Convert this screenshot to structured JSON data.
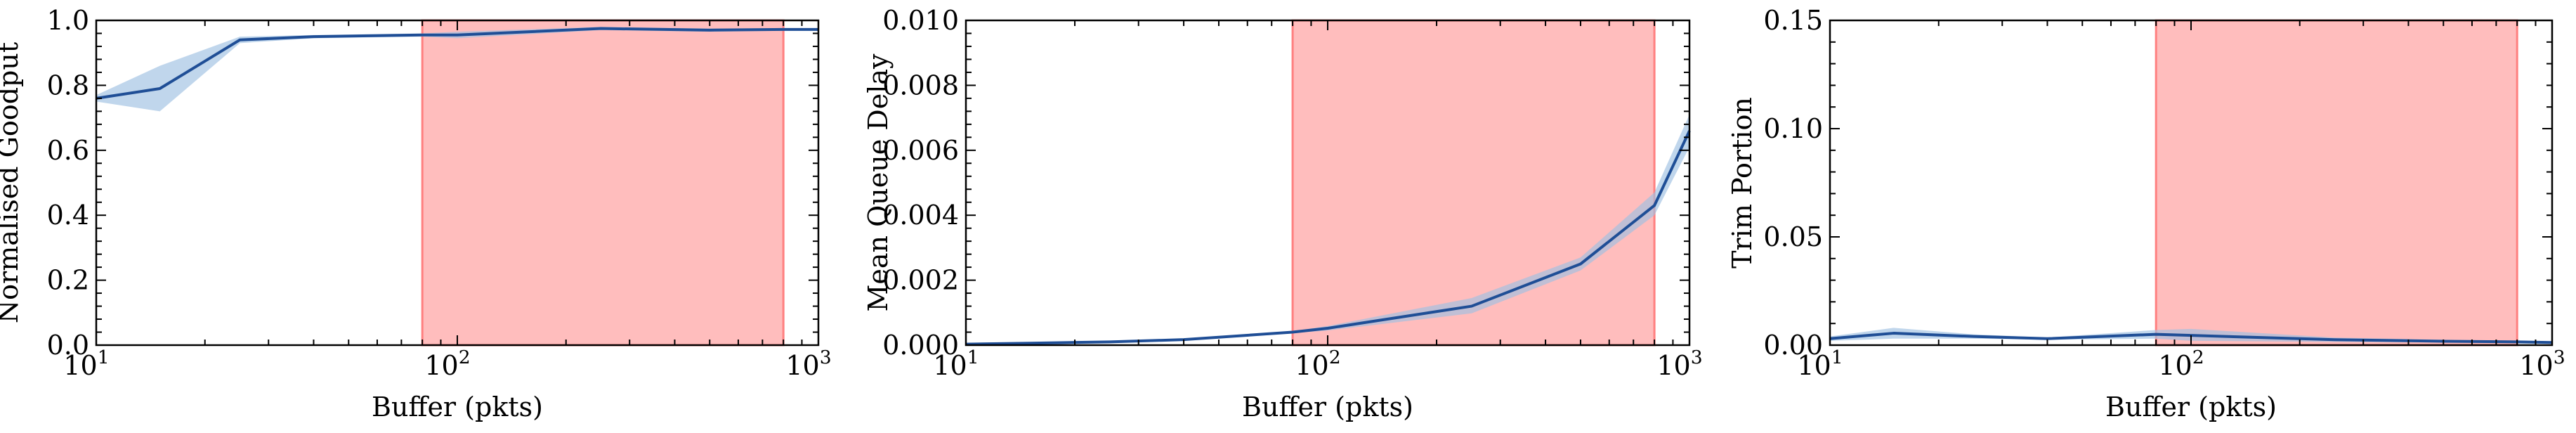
{
  "figure": {
    "colors": {
      "line": "#1f4e96",
      "band": "#9ec0e2",
      "shade": "#ff8080",
      "axis": "#000000"
    }
  },
  "chart_data": [
    {
      "type": "line",
      "title": "",
      "xlabel": "Buffer (pkts)",
      "ylabel": "Normalised Goodput",
      "xscale": "log",
      "xlim": [
        10,
        1000
      ],
      "ylim": [
        0,
        1.0
      ],
      "xticks": [
        10,
        100,
        1000
      ],
      "xtick_labels": [
        {
          "base": "10",
          "exp": "1"
        },
        {
          "base": "10",
          "exp": "2"
        },
        {
          "base": "10",
          "exp": "3"
        }
      ],
      "yticks": [
        0,
        0.2,
        0.4,
        0.6,
        0.8,
        1.0
      ],
      "ytick_labels": [
        "0.0",
        "0.2",
        "0.4",
        "0.6",
        "0.8",
        "1.0"
      ],
      "shaded_region": [
        80,
        800
      ],
      "grid": false,
      "series": [
        {
          "x": [
            10,
            15,
            25,
            40,
            80,
            100,
            250,
            500,
            800,
            1000
          ],
          "values": [
            0.76,
            0.79,
            0.94,
            0.95,
            0.955,
            0.955,
            0.975,
            0.97,
            0.972,
            0.972
          ],
          "lower": [
            0.75,
            0.72,
            0.93,
            0.945,
            0.95,
            0.945,
            0.97,
            0.965,
            0.968,
            0.968
          ],
          "upper": [
            0.77,
            0.86,
            0.95,
            0.955,
            0.96,
            0.965,
            0.98,
            0.975,
            0.976,
            0.976
          ]
        }
      ]
    },
    {
      "type": "line",
      "title": "",
      "xlabel": "Buffer (pkts)",
      "ylabel": "Mean Queue Delay",
      "xscale": "log",
      "xlim": [
        10,
        1000
      ],
      "ylim": [
        0,
        0.01
      ],
      "xticks": [
        10,
        100,
        1000
      ],
      "xtick_labels": [
        {
          "base": "10",
          "exp": "1"
        },
        {
          "base": "10",
          "exp": "2"
        },
        {
          "base": "10",
          "exp": "3"
        }
      ],
      "yticks": [
        0,
        0.002,
        0.004,
        0.006,
        0.008,
        0.01
      ],
      "ytick_labels": [
        "0.000",
        "0.002",
        "0.004",
        "0.006",
        "0.008",
        "0.010"
      ],
      "shaded_region": [
        80,
        800
      ],
      "grid": false,
      "series": [
        {
          "x": [
            10,
            15,
            25,
            40,
            80,
            100,
            250,
            500,
            800,
            1000
          ],
          "values": [
            3e-05,
            6e-05,
            0.0001,
            0.00017,
            0.0004,
            0.00052,
            0.0012,
            0.0025,
            0.0043,
            0.0066
          ],
          "lower": [
            2e-05,
            5e-05,
            9e-05,
            0.00015,
            0.00037,
            0.00045,
            0.00098,
            0.0023,
            0.004,
            0.0061
          ],
          "upper": [
            4e-05,
            7e-05,
            0.00011,
            0.00019,
            0.00043,
            0.00059,
            0.00145,
            0.0027,
            0.0047,
            0.0071
          ]
        }
      ]
    },
    {
      "type": "line",
      "title": "",
      "xlabel": "Buffer (pkts)",
      "ylabel": "Trim Portion",
      "xscale": "log",
      "xlim": [
        10,
        1000
      ],
      "ylim": [
        0,
        0.15
      ],
      "xticks": [
        10,
        100,
        1000
      ],
      "xtick_labels": [
        {
          "base": "10",
          "exp": "1"
        },
        {
          "base": "10",
          "exp": "2"
        },
        {
          "base": "10",
          "exp": "3"
        }
      ],
      "yticks": [
        0,
        0.05,
        0.1,
        0.15
      ],
      "ytick_labels": [
        "0.00",
        "0.05",
        "0.10",
        "0.15"
      ],
      "shaded_region": [
        80,
        800
      ],
      "grid": false,
      "series": [
        {
          "x": [
            10,
            15,
            25,
            40,
            80,
            100,
            250,
            500,
            800,
            1000
          ],
          "values": [
            0.003,
            0.0055,
            0.004,
            0.003,
            0.005,
            0.0045,
            0.0025,
            0.0018,
            0.0015,
            0.0012
          ],
          "lower": [
            0.002,
            0.003,
            0.003,
            0.0025,
            0.003,
            0.002,
            0.0015,
            0.0012,
            0.001,
            0.0008
          ],
          "upper": [
            0.004,
            0.008,
            0.005,
            0.0035,
            0.007,
            0.0075,
            0.0035,
            0.0025,
            0.002,
            0.0016
          ]
        }
      ]
    }
  ]
}
